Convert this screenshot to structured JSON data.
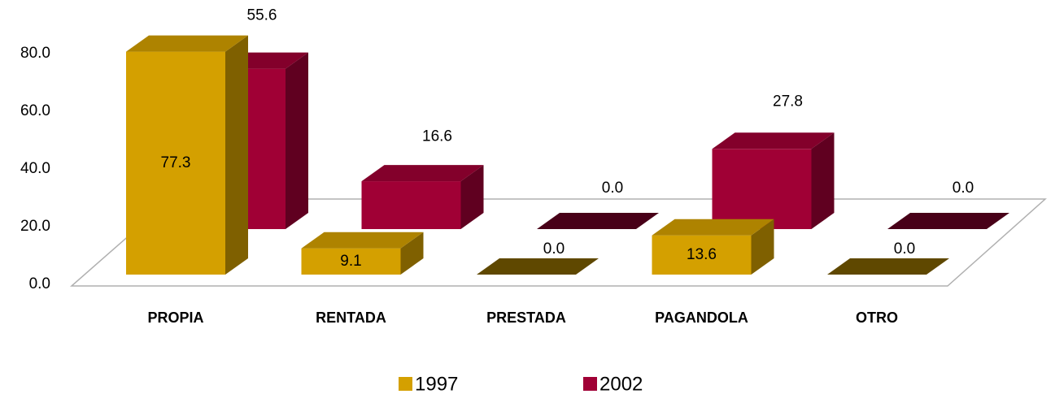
{
  "chart_data": {
    "type": "bar3d",
    "categories": [
      "PROPIA",
      "RENTADA",
      "PRESTADA",
      "PAGANDOLA",
      "OTRO"
    ],
    "series": [
      {
        "name": "1997",
        "color": "#d4a000",
        "values": [
          77.3,
          9.1,
          0,
          13.6,
          0
        ],
        "value_labels": [
          "77.3",
          "9.1",
          "0.0",
          "13.6",
          "0.0"
        ]
      },
      {
        "name": "2002",
        "color": "#a00035",
        "values": [
          55.6,
          16.6,
          0,
          27.8,
          0
        ],
        "value_labels": [
          "55.6",
          "16.6",
          "0.0",
          "27.8",
          "0.0"
        ]
      }
    ],
    "ylim": [
      0,
      80
    ],
    "yticks": [
      {
        "value": 0,
        "label": "0.0"
      },
      {
        "value": 20,
        "label": "20.0"
      },
      {
        "value": 40,
        "label": "40.0"
      },
      {
        "value": 60,
        "label": "60.0"
      },
      {
        "value": 80,
        "label": "80.0"
      }
    ],
    "grid": false,
    "legend": "bottom"
  }
}
